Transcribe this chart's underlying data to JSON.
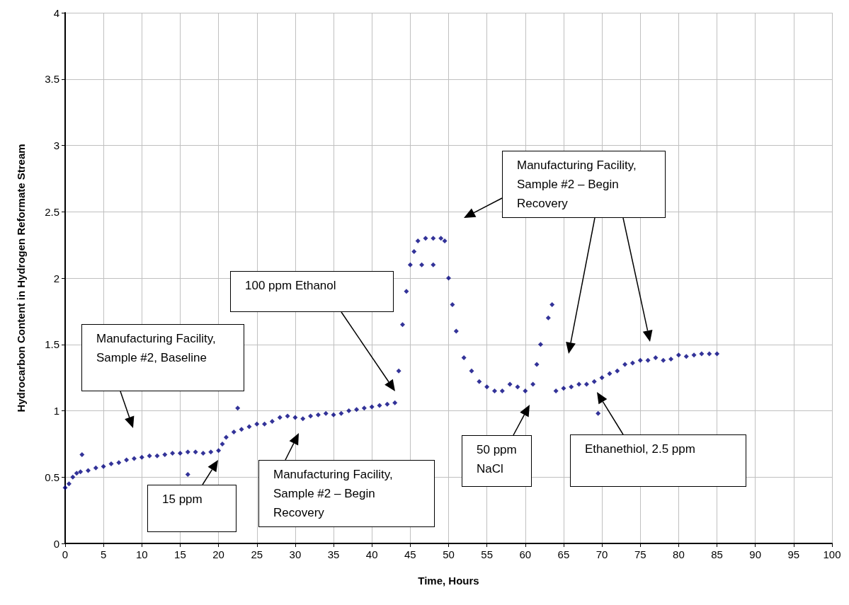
{
  "chart_data": {
    "type": "scatter",
    "xlabel": "Time, Hours",
    "ylabel": "Hydrocarbon Content in Hydrogen Reformate Stream",
    "color": "#000080",
    "marker": "diamond",
    "grid": true,
    "x": [
      0,
      0.5,
      1,
      1.5,
      2,
      2.2,
      3,
      4,
      5,
      6,
      7,
      8,
      9,
      10,
      11,
      12,
      13,
      14,
      15,
      16,
      16,
      17,
      18,
      19,
      20,
      20.5,
      21,
      22,
      22.5,
      23,
      24,
      25,
      26,
      27,
      28,
      29,
      30,
      31,
      32,
      33,
      34,
      35,
      36,
      37,
      38,
      39,
      40,
      41,
      42,
      43,
      43.5,
      44,
      44.5,
      45,
      45.5,
      46,
      46.5,
      47,
      48,
      48,
      49,
      49.5,
      50,
      50.5,
      51,
      52,
      53,
      54,
      55,
      56,
      57,
      58,
      59,
      60,
      61,
      61.5,
      62,
      63,
      63.5,
      64,
      65,
      66,
      67,
      68,
      69,
      69.5,
      70,
      71,
      72,
      73,
      74,
      75,
      76,
      77,
      78,
      79,
      80,
      81,
      82,
      83,
      84,
      85
    ],
    "values": [
      0.42,
      0.45,
      0.5,
      0.53,
      0.54,
      0.67,
      0.55,
      0.57,
      0.58,
      0.6,
      0.61,
      0.63,
      0.64,
      0.65,
      0.66,
      0.66,
      0.67,
      0.68,
      0.68,
      0.69,
      0.52,
      0.69,
      0.68,
      0.69,
      0.7,
      0.75,
      0.8,
      0.84,
      1.02,
      0.86,
      0.88,
      0.9,
      0.9,
      0.92,
      0.95,
      0.96,
      0.95,
      0.94,
      0.96,
      0.97,
      0.98,
      0.97,
      0.98,
      1.0,
      1.01,
      1.02,
      1.03,
      1.04,
      1.05,
      1.06,
      1.3,
      1.65,
      1.9,
      2.1,
      2.2,
      2.28,
      2.1,
      2.3,
      2.3,
      2.1,
      2.3,
      2.28,
      2.0,
      1.8,
      1.6,
      1.4,
      1.3,
      1.22,
      1.18,
      1.15,
      1.15,
      1.2,
      1.18,
      1.15,
      1.2,
      1.35,
      1.5,
      1.7,
      1.8,
      1.15,
      1.17,
      1.18,
      1.2,
      1.2,
      1.22,
      0.98,
      1.25,
      1.28,
      1.3,
      1.35,
      1.36,
      1.38,
      1.38,
      1.4,
      1.38,
      1.39,
      1.42,
      1.41,
      1.42,
      1.43,
      1.43,
      1.43
    ],
    "xlim": [
      0,
      100
    ],
    "xticks": [
      0,
      5,
      10,
      15,
      20,
      25,
      30,
      35,
      40,
      45,
      50,
      55,
      60,
      65,
      70,
      75,
      80,
      85,
      90,
      95,
      100
    ],
    "ylim": [
      0,
      4
    ],
    "yticks": [
      0,
      0.5,
      1,
      1.5,
      2,
      2.5,
      3,
      3.5,
      4
    ],
    "annotations": [
      "Manufacturing Facility, Sample #2, Baseline",
      "15 ppm",
      "Manufacturing Facility, Sample #2 – Begin Recovery",
      "100 ppm Ethanol",
      "Manufacturing Facility, Sample #2 – Begin Recovery",
      "50 ppm NaCl",
      "Ethanethiol, 2.5 ppm"
    ]
  }
}
